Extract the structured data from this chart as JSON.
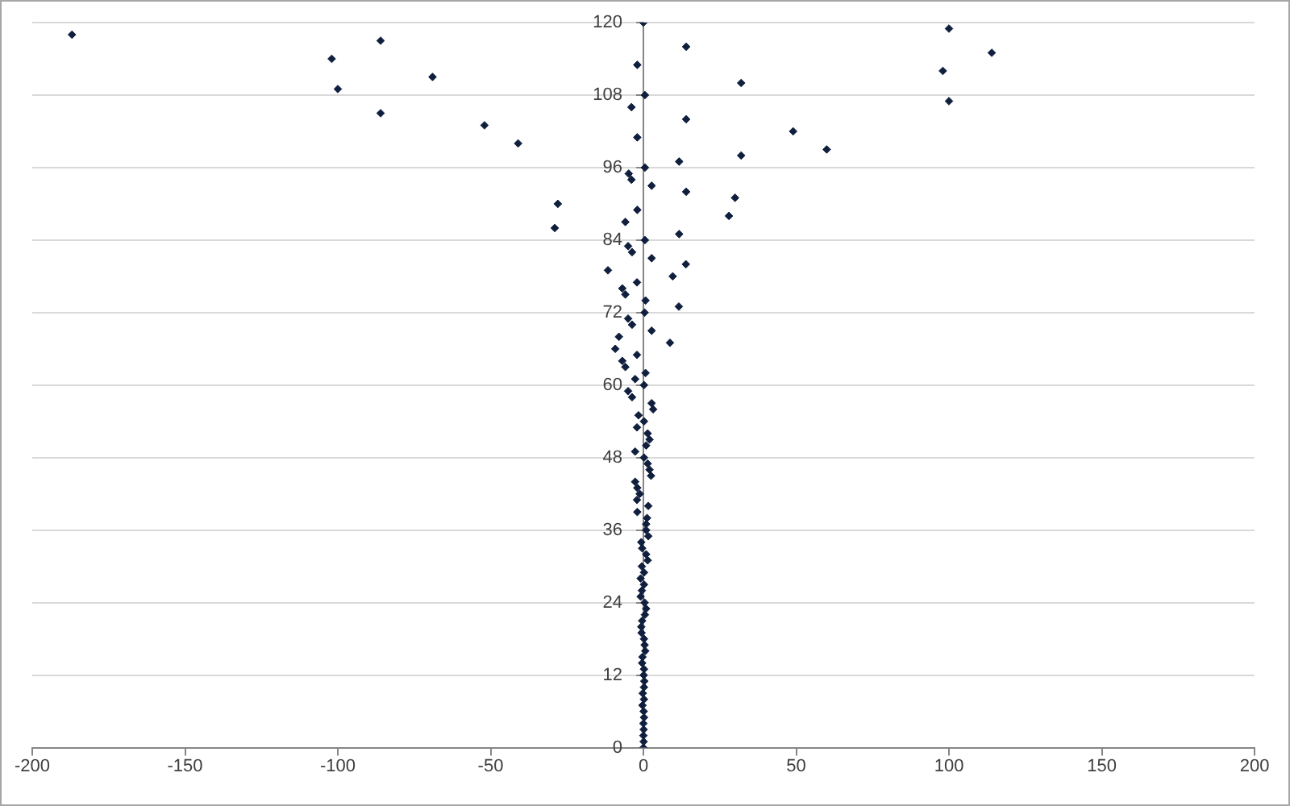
{
  "chart_data": {
    "type": "scatter",
    "x": [
      0,
      0.1,
      0,
      0.1,
      0,
      0.2,
      0.1,
      -0.3,
      0.2,
      -0.2,
      0.2,
      0.3,
      0.1,
      0.2,
      -0.4,
      -0.3,
      0.6,
      0.4,
      0.2,
      -0.6,
      -0.7,
      -0.4,
      0.5,
      0.9,
      0.4,
      -0.9,
      -0.5,
      0.2,
      -0.9,
      0.2,
      -0.5,
      1.4,
      0.9,
      -0.4,
      -0.7,
      1.6,
      0.9,
      0.9,
      1.2,
      -2,
      1.6,
      -2.1,
      -1.2,
      -2,
      -2.7,
      2.5,
      2,
      1.4,
      0.2,
      -2.7,
      0.9,
      2,
      1.4,
      -2.1,
      0.2,
      -1.6,
      3.2,
      2.7,
      -3.7,
      -5,
      0.2,
      -2.7,
      0.7,
      -5.9,
      -6.9,
      -2.1,
      -9.2,
      8.7,
      -8,
      2.7,
      -3.7,
      -5,
      0.4,
      11.6,
      0.7,
      -5.9,
      -6.9,
      -2.1,
      9.6,
      -11.6,
      13.9,
      2.7,
      -3.7,
      -5,
      0.5,
      11.7,
      -29,
      -5.9,
      28,
      -2,
      -28,
      30,
      14,
      2.7,
      -3.9,
      -4.8,
      0.5,
      11.7,
      32,
      60,
      -41,
      -2,
      49,
      -52,
      14,
      -86,
      -3.9,
      100,
      0.5,
      -100,
      32,
      -69,
      98,
      -2,
      -102,
      114,
      14,
      -86,
      -187,
      100,
      0
    ],
    "values": [
      0,
      1,
      2,
      3,
      4,
      5,
      6,
      7,
      8,
      9,
      10,
      11,
      12,
      13,
      14,
      15,
      16,
      17,
      18,
      19,
      20,
      21,
      22,
      23,
      24,
      25,
      26,
      27,
      28,
      29,
      30,
      31,
      32,
      33,
      34,
      35,
      36,
      37,
      38,
      39,
      40,
      41,
      42,
      43,
      44,
      45,
      46,
      47,
      48,
      49,
      50,
      51,
      52,
      53,
      54,
      55,
      56,
      57,
      58,
      59,
      60,
      61,
      62,
      63,
      64,
      65,
      66,
      67,
      68,
      69,
      70,
      71,
      72,
      73,
      74,
      75,
      76,
      77,
      78,
      79,
      80,
      81,
      82,
      83,
      84,
      85,
      86,
      87,
      88,
      89,
      90,
      91,
      92,
      93,
      94,
      95,
      96,
      97,
      98,
      99,
      100,
      101,
      102,
      103,
      104,
      105,
      106,
      107,
      108,
      109,
      110,
      111,
      112,
      113,
      114,
      115,
      116,
      117,
      118,
      119,
      120
    ],
    "color": "#0f1f3d",
    "marker": "diamond",
    "xlim": [
      -200,
      200
    ],
    "xticks": [
      -200,
      -150,
      -100,
      -50,
      0,
      50,
      100,
      150,
      200
    ],
    "ylim": [
      0,
      120
    ],
    "yticks": [
      0,
      12,
      24,
      36,
      48,
      60,
      72,
      84,
      96,
      108,
      120
    ],
    "grid": "y"
  }
}
